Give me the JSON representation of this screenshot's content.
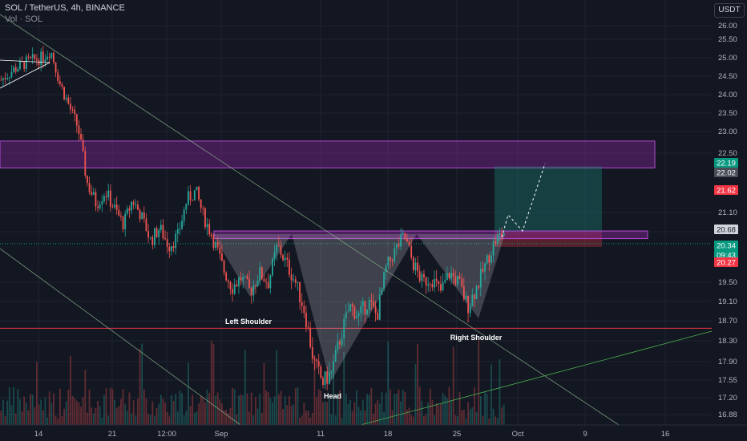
{
  "header": {
    "symbol": "SOL / TetherUS, 4h, BINANCE",
    "volume_label": "Vol · SOL"
  },
  "currency": "USDT",
  "colors": {
    "background": "#131722",
    "up_candle": "#26a69a",
    "down_candle": "#ef5350",
    "trendline": "#9ccc9c",
    "zone": "#9c27b0",
    "support": "#f23645",
    "target_box": "#1e8a7a",
    "label_green": "#089981",
    "label_red": "#f23645",
    "label_grey": "#2a2e39"
  },
  "chart_data": {
    "type": "candlestick",
    "x_ticks": [
      "14",
      "21",
      "12:00",
      "Sep",
      "11",
      "18",
      "25",
      "Oct",
      "9",
      "16"
    ],
    "y_ticks": [
      "26.00",
      "25.50",
      "25.00",
      "24.50",
      "24.00",
      "23.50",
      "23.00",
      "22.50",
      "21.10",
      "20.60",
      "19.50",
      "19.10",
      "18.70",
      "18.30",
      "17.90",
      "17.55",
      "17.20",
      "16.88"
    ],
    "ylim": [
      16.75,
      26.2
    ],
    "y_scale": "log",
    "grid": true,
    "price_markers": [
      {
        "value": "22.19",
        "color": "#089981"
      },
      {
        "value": "22.02",
        "color": "#4a4e59"
      },
      {
        "value": "21.62",
        "color": "#f23645"
      },
      {
        "value": "20.68",
        "color": "#d1d4dc"
      },
      {
        "value": "20.34",
        "color": "#089981"
      },
      {
        "value": "09:43",
        "color": "#089981"
      },
      {
        "value": "20.27",
        "color": "#f23645"
      }
    ],
    "pattern_labels": [
      "Left Shoulder",
      "Head",
      "Right Shoulder"
    ],
    "zones": [
      {
        "kind": "resistance",
        "low": 22.15,
        "high": 22.78
      },
      {
        "kind": "neckline",
        "low": 20.45,
        "high": 20.62
      }
    ],
    "support_level": 18.55,
    "trade_setup": {
      "entry": 20.6,
      "target": 22.19,
      "stop": 20.27
    },
    "waypoints": [
      {
        "t": 0,
        "p": 24.4
      },
      {
        "t": 3,
        "p": 24.7
      },
      {
        "t": 6,
        "p": 24.9
      },
      {
        "t": 9,
        "p": 25.0
      },
      {
        "t": 11,
        "p": 25.2
      },
      {
        "t": 13,
        "p": 24.3
      },
      {
        "t": 15,
        "p": 23.7
      },
      {
        "t": 17,
        "p": 23.1
      },
      {
        "t": 19,
        "p": 21.8
      },
      {
        "t": 21,
        "p": 21.3
      },
      {
        "t": 23,
        "p": 21.6
      },
      {
        "t": 25,
        "p": 21.2
      },
      {
        "t": 27,
        "p": 20.8
      },
      {
        "t": 29,
        "p": 21.4
      },
      {
        "t": 31,
        "p": 21.0
      },
      {
        "t": 33,
        "p": 20.4
      },
      {
        "t": 35,
        "p": 20.7
      },
      {
        "t": 37,
        "p": 20.3
      },
      {
        "t": 39,
        "p": 20.5
      },
      {
        "t": 41,
        "p": 21.4
      },
      {
        "t": 43,
        "p": 21.6
      },
      {
        "t": 45,
        "p": 20.9
      },
      {
        "t": 47,
        "p": 20.4
      },
      {
        "t": 49,
        "p": 19.8
      },
      {
        "t": 51,
        "p": 19.4
      },
      {
        "t": 53,
        "p": 19.6
      },
      {
        "t": 55,
        "p": 19.3
      },
      {
        "t": 57,
        "p": 19.7
      },
      {
        "t": 59,
        "p": 19.5
      },
      {
        "t": 61,
        "p": 20.3
      },
      {
        "t": 63,
        "p": 19.9
      },
      {
        "t": 65,
        "p": 19.5
      },
      {
        "t": 67,
        "p": 18.9
      },
      {
        "t": 69,
        "p": 17.9
      },
      {
        "t": 71,
        "p": 17.5
      },
      {
        "t": 73,
        "p": 17.7
      },
      {
        "t": 75,
        "p": 18.4
      },
      {
        "t": 77,
        "p": 19.0
      },
      {
        "t": 79,
        "p": 18.8
      },
      {
        "t": 81,
        "p": 19.1
      },
      {
        "t": 83,
        "p": 18.8
      },
      {
        "t": 85,
        "p": 19.8
      },
      {
        "t": 87,
        "p": 20.2
      },
      {
        "t": 89,
        "p": 20.5
      },
      {
        "t": 91,
        "p": 19.9
      },
      {
        "t": 93,
        "p": 19.5
      },
      {
        "t": 95,
        "p": 19.6
      },
      {
        "t": 97,
        "p": 19.3
      },
      {
        "t": 99,
        "p": 19.7
      },
      {
        "t": 101,
        "p": 19.5
      },
      {
        "t": 103,
        "p": 19.0
      },
      {
        "t": 105,
        "p": 19.4
      },
      {
        "t": 107,
        "p": 19.9
      },
      {
        "t": 109,
        "p": 20.4
      },
      {
        "t": 111,
        "p": 20.6
      }
    ]
  }
}
